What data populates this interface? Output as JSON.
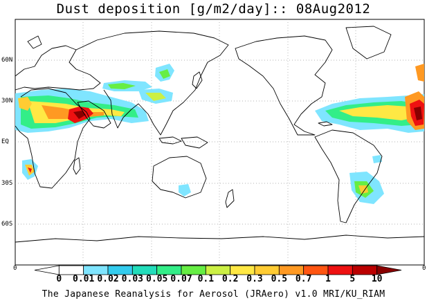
{
  "title": "Dust deposition [g/m2/day]:: 08Aug2012",
  "lat_labels": [
    "60N",
    "30N",
    "EQ",
    "30S",
    "60S"
  ],
  "lon_edge_labels": [
    "0",
    "0"
  ],
  "colorbar": {
    "labels": [
      "0",
      "0.01",
      "0.02",
      "0.03",
      "0.05",
      "0.07",
      "0.1",
      "0.2",
      "0.3",
      "0.5",
      "0.7",
      "1",
      "5",
      "10"
    ],
    "colors": [
      "#ffffff",
      "#ffffff",
      "#7fe5ff",
      "#33ccee",
      "#22ddbb",
      "#33ee88",
      "#66ee44",
      "#ccf044",
      "#ffe844",
      "#ffcc33",
      "#ff9922",
      "#ff5511",
      "#ee1111",
      "#bb0000",
      "#880000",
      "#5a0000"
    ]
  },
  "footer": "The Japanese Reanalysis for Aerosol (JRAero) v1.0 MRI/KU_RIAM"
}
